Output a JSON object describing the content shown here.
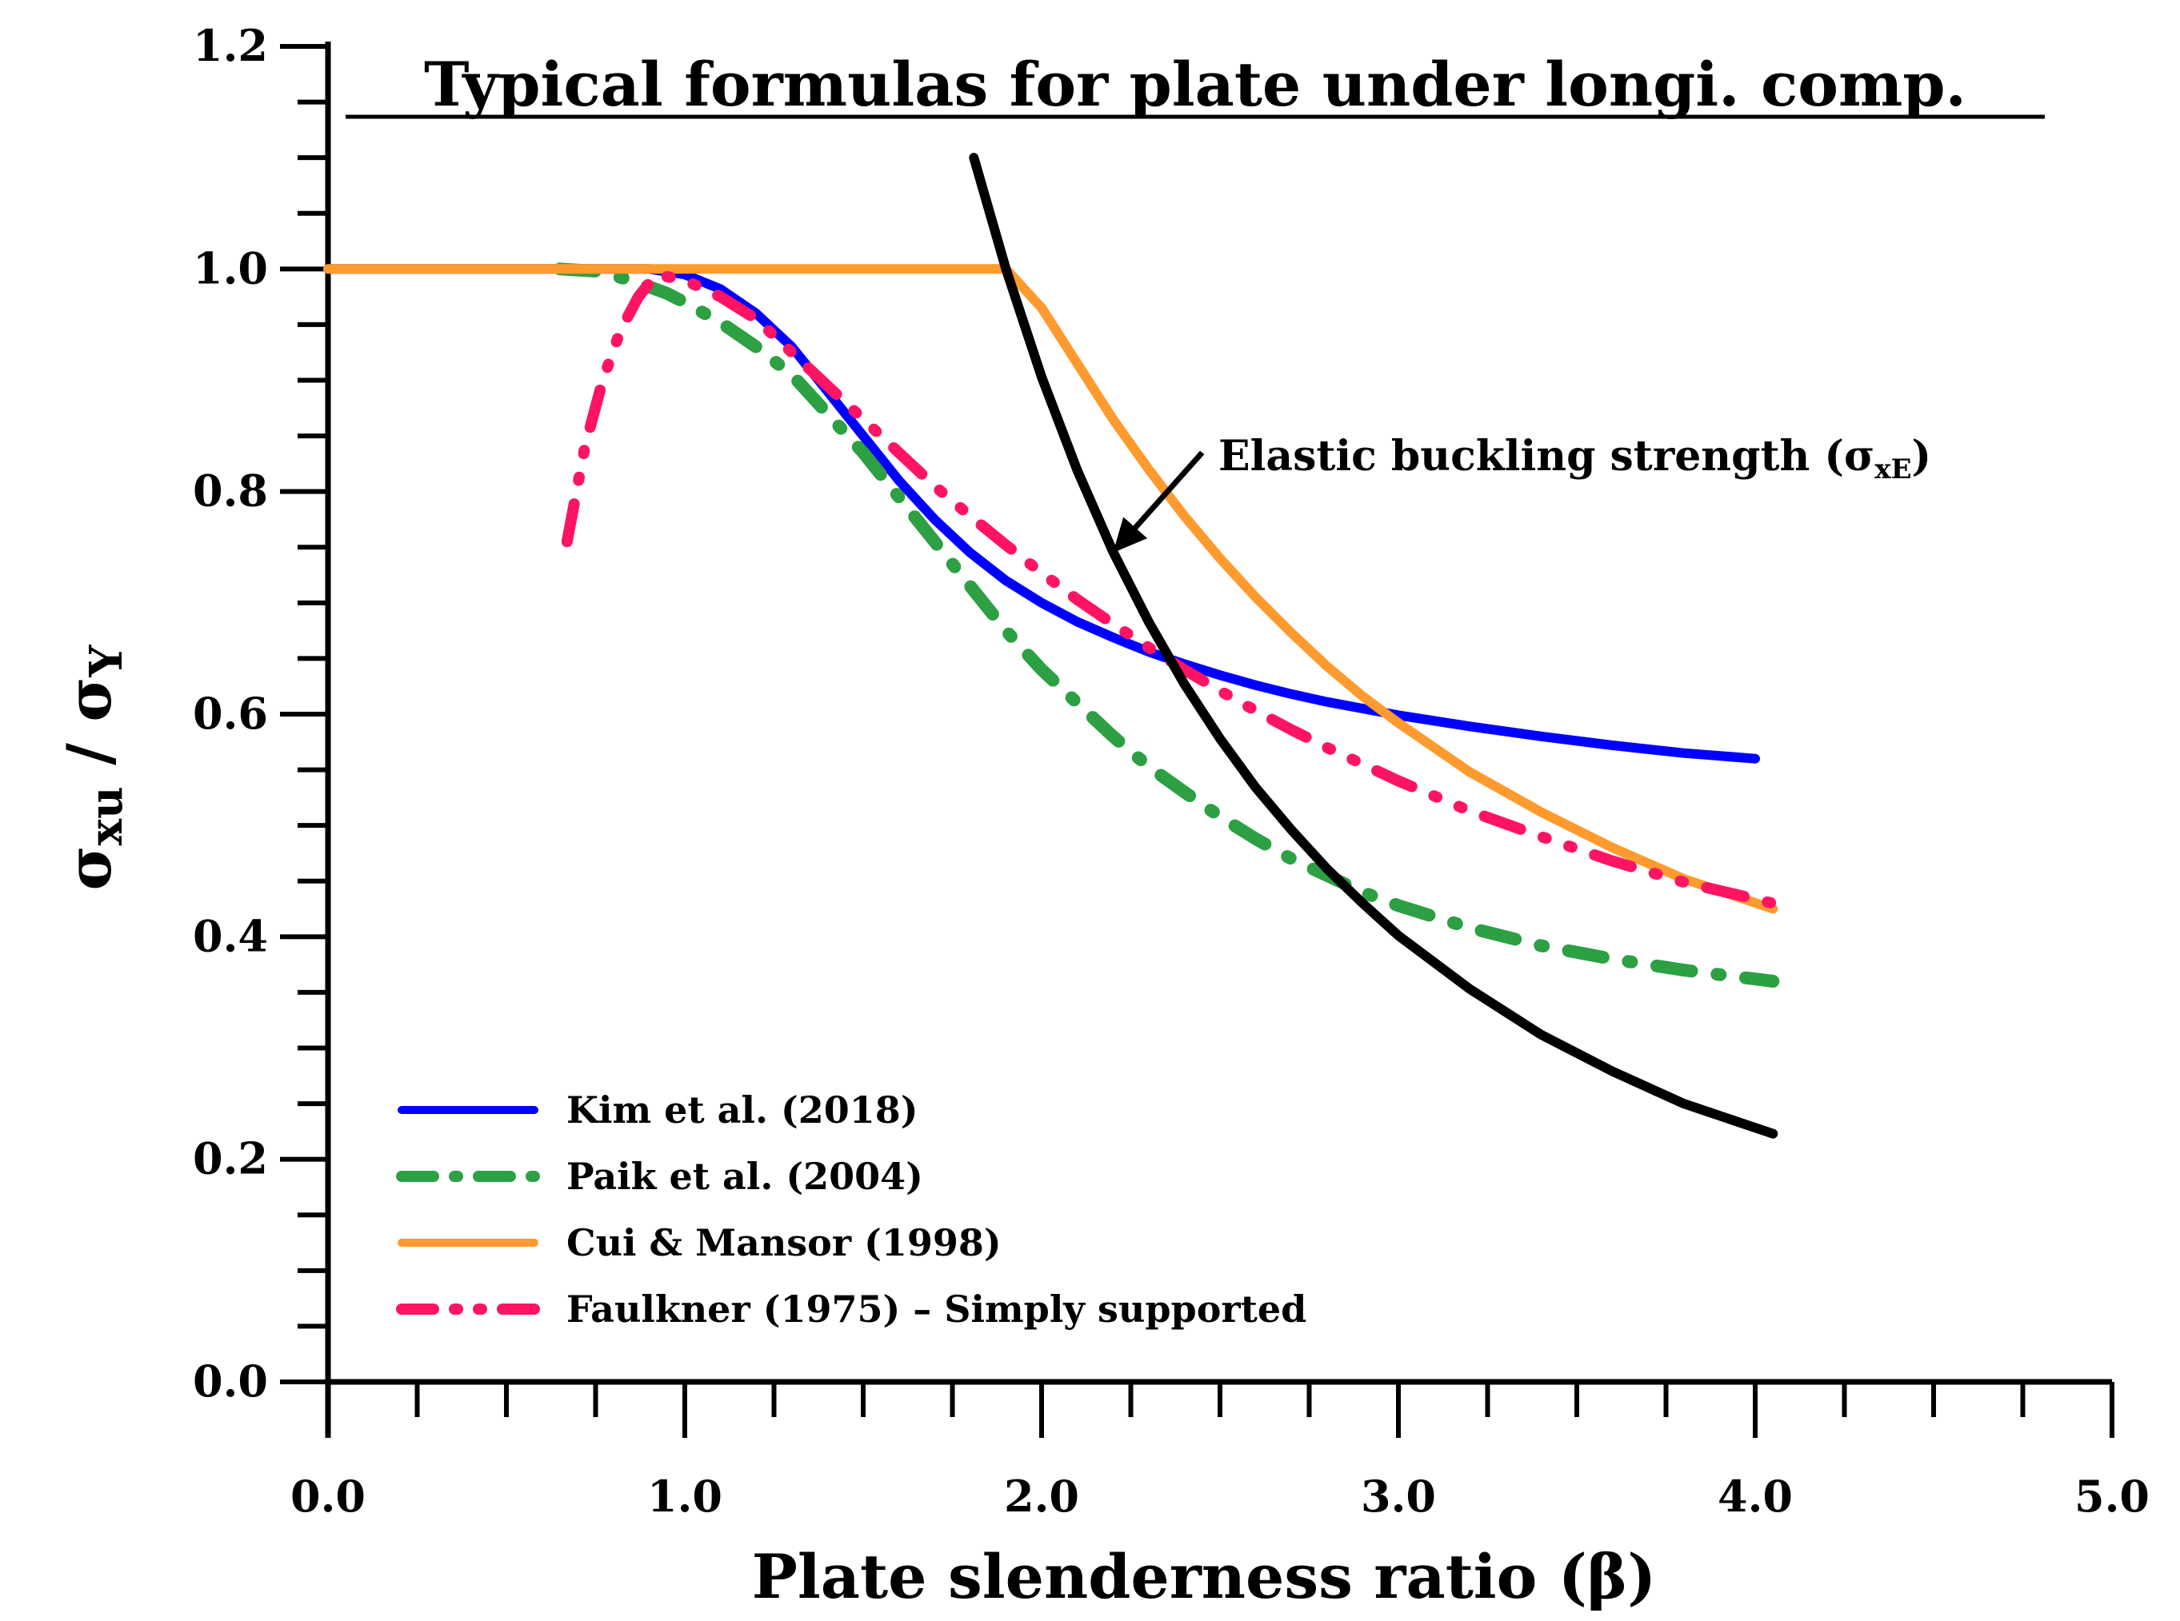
{
  "chart_data": {
    "type": "line",
    "title": "Typical formulas for plate under longi. comp.",
    "xlabel": "Plate slenderness ratio (β)",
    "ylabel_main_1": "σ",
    "ylabel_sub_1": "xu",
    "ylabel_sep": " / ",
    "ylabel_main_2": "σ",
    "ylabel_sub_2": "Y",
    "xlim": [
      0,
      5
    ],
    "ylim": [
      0,
      1.2
    ],
    "x_ticks": [
      "0.0",
      "1.0",
      "2.0",
      "3.0",
      "4.0",
      "5.0"
    ],
    "y_ticks": [
      "0.0",
      "0.2",
      "0.4",
      "0.6",
      "0.8",
      "1.0",
      "1.2"
    ],
    "grid": false,
    "legend_position": "bottom-left",
    "series": [
      {
        "name": "Kim et al. (2018)",
        "color": "#0000ff",
        "style": "solid",
        "x": [
          0,
          0.2,
          0.4,
          0.6,
          0.8,
          0.9,
          1.0,
          1.1,
          1.2,
          1.3,
          1.4,
          1.5,
          1.6,
          1.7,
          1.8,
          1.9,
          2.0,
          2.1,
          2.2,
          2.3,
          2.4,
          2.5,
          2.6,
          2.7,
          2.8,
          2.9,
          3.0,
          3.2,
          3.4,
          3.6,
          3.8,
          4.0
        ],
        "y": [
          1.0,
          1.0,
          1.0,
          1.0,
          1.0,
          1.0,
          0.995,
          0.982,
          0.96,
          0.93,
          0.89,
          0.85,
          0.81,
          0.775,
          0.745,
          0.72,
          0.7,
          0.683,
          0.669,
          0.656,
          0.645,
          0.635,
          0.626,
          0.618,
          0.611,
          0.605,
          0.599,
          0.589,
          0.58,
          0.572,
          0.565,
          0.56
        ]
      },
      {
        "name": "Paik et al. (2004)",
        "color": "#2ca043",
        "style": "dashdot",
        "x": [
          0.65,
          0.75,
          0.85,
          0.95,
          1.0,
          1.1,
          1.2,
          1.3,
          1.4,
          1.5,
          1.6,
          1.7,
          1.8,
          1.9,
          2.0,
          2.1,
          2.2,
          2.3,
          2.4,
          2.5,
          2.6,
          2.7,
          2.8,
          2.9,
          3.0,
          3.2,
          3.4,
          3.6,
          3.8,
          4.05
        ],
        "y": [
          1.0,
          0.998,
          0.99,
          0.978,
          0.97,
          0.952,
          0.93,
          0.905,
          0.87,
          0.835,
          0.795,
          0.755,
          0.715,
          0.675,
          0.64,
          0.61,
          0.58,
          0.553,
          0.53,
          0.508,
          0.488,
          0.47,
          0.455,
          0.44,
          0.428,
          0.408,
          0.392,
          0.38,
          0.37,
          0.36
        ]
      },
      {
        "name": "Cui & Mansor (1998)",
        "color": "#ff9a2e",
        "style": "solid",
        "x": [
          0,
          0.5,
          1.0,
          1.5,
          1.9,
          2.0,
          2.1,
          2.2,
          2.3,
          2.4,
          2.5,
          2.6,
          2.7,
          2.8,
          2.9,
          3.0,
          3.2,
          3.4,
          3.6,
          3.8,
          4.05
        ],
        "y": [
          1.0,
          1.0,
          1.0,
          1.0,
          1.0,
          0.965,
          0.915,
          0.865,
          0.82,
          0.778,
          0.74,
          0.705,
          0.673,
          0.643,
          0.616,
          0.592,
          0.548,
          0.512,
          0.48,
          0.452,
          0.425
        ]
      },
      {
        "name": "Faulkner (1975) – Simply supported",
        "color": "#ff1464",
        "style": "dashdotdot",
        "x": [
          0.67,
          0.72,
          0.77,
          0.82,
          0.87,
          0.92,
          1.0,
          1.1,
          1.2,
          1.3,
          1.4,
          1.5,
          1.6,
          1.7,
          1.8,
          1.9,
          2.0,
          2.1,
          2.2,
          2.3,
          2.4,
          2.5,
          2.6,
          2.7,
          2.8,
          2.9,
          3.0,
          3.2,
          3.4,
          3.6,
          3.8,
          4.05
        ],
        "y": [
          0.755,
          0.84,
          0.9,
          0.945,
          0.975,
          0.995,
          0.99,
          0.975,
          0.955,
          0.925,
          0.895,
          0.865,
          0.835,
          0.805,
          0.778,
          0.752,
          0.727,
          0.703,
          0.681,
          0.66,
          0.64,
          0.621,
          0.603,
          0.586,
          0.57,
          0.555,
          0.54,
          0.513,
          0.49,
          0.468,
          0.449,
          0.43
        ]
      },
      {
        "name": "Elastic buckling strength",
        "color": "#000000",
        "style": "solid",
        "legend": false,
        "x": [
          1.81,
          1.9,
          2.0,
          2.1,
          2.2,
          2.3,
          2.4,
          2.5,
          2.6,
          2.7,
          2.8,
          2.9,
          3.0,
          3.2,
          3.4,
          3.6,
          3.8,
          4.05
        ],
        "y": [
          1.1,
          1.0,
          0.903,
          0.819,
          0.746,
          0.683,
          0.627,
          0.578,
          0.534,
          0.496,
          0.461,
          0.43,
          0.401,
          0.353,
          0.312,
          0.279,
          0.25,
          0.223
        ]
      }
    ],
    "annotation": {
      "text": "Elastic buckling strength (σ",
      "sub": "xE",
      "close": ")",
      "arrow_from": [
        2.45,
        0.835
      ],
      "arrow_to": [
        2.2,
        0.745
      ]
    }
  }
}
